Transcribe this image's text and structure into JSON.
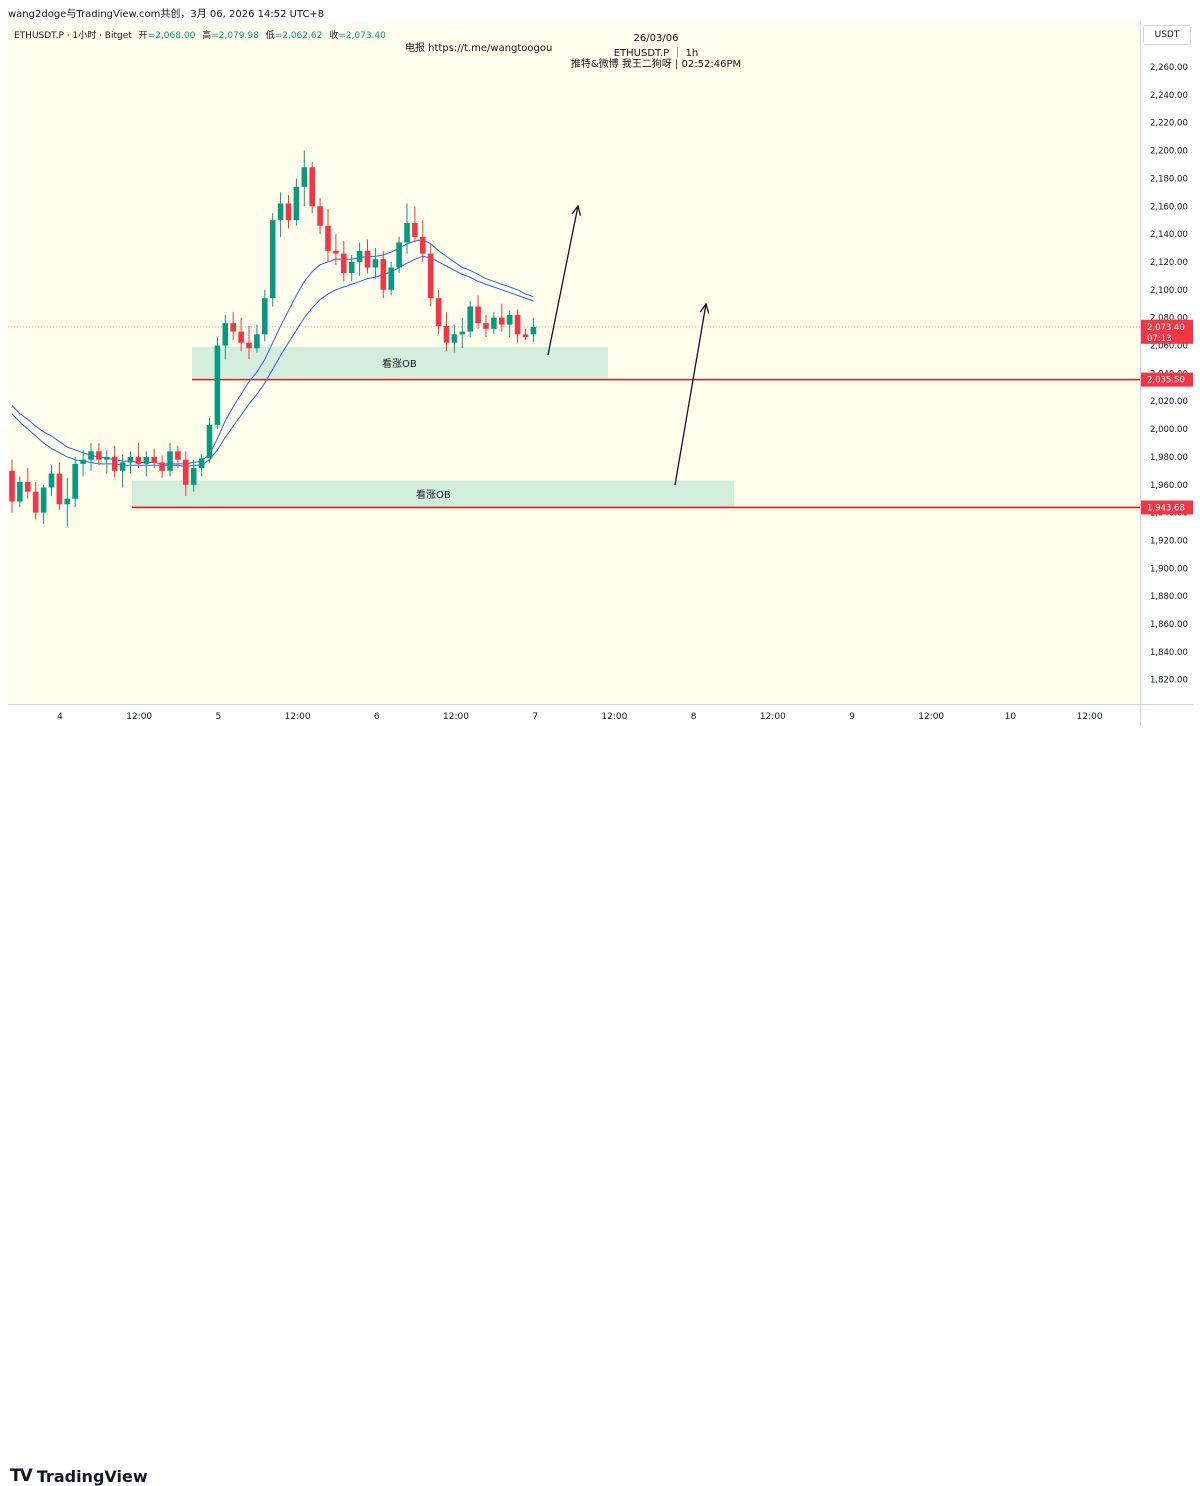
{
  "header": {
    "title": "wang2doge与TradingView.com共创，3月 06, 2026 14:52 UTC+8"
  },
  "legend": {
    "symbol": "ETHUSDT.P · 1小时 · Bitget",
    "open_label": "开",
    "open_value": "=2,068.00",
    "high_label": "高",
    "high_value": "=2,079.98",
    "low_label": "低",
    "low_value": "=2,062.62",
    "close_label": "收",
    "close_value": "=2,073.40"
  },
  "watermark": {
    "telegram": "电报 https://t.me/wangtoogou",
    "date": "26/03/06",
    "symbol": "ETHUSDT.P ｜ 1h",
    "social": "推特&微博 我王二狗呀 | 02:52:46PM"
  },
  "price_axis": {
    "unit": "USDT",
    "ticks": [
      "2,260.00",
      "2,240.00",
      "2,220.00",
      "2,200.00",
      "2,180.00",
      "2,160.00",
      "2,140.00",
      "2,120.00",
      "2,100.00",
      "2,080.00",
      "2,060.00",
      "2,040.00",
      "2,020.00",
      "2,000.00",
      "1,980.00",
      "1,960.00",
      "1,940.00",
      "1,920.00",
      "1,900.00",
      "1,880.00",
      "1,860.00",
      "1,840.00",
      "1,820.00"
    ]
  },
  "time_axis": {
    "ticks": [
      "4",
      "12:00",
      "5",
      "12:00",
      "6",
      "12:00",
      "7",
      "12:00",
      "8",
      "12:00",
      "9",
      "12:00",
      "10",
      "12:00"
    ]
  },
  "price_labels": {
    "current": "2,073.40",
    "countdown": "07:13",
    "level_upper": "2,035.50",
    "level_lower": "1,943.68"
  },
  "zones": {
    "upper_label": "看涨OB",
    "lower_label": "看涨OB"
  },
  "brand": {
    "name": "TradingView"
  },
  "colors": {
    "up": "#089981",
    "down": "#f23645",
    "ma": "#2962ff",
    "zone": "#d4eede",
    "level": "#e01b1b",
    "background": "#fffdeb"
  },
  "chart_data": {
    "type": "candlestick",
    "symbol": "ETHUSDT.P",
    "interval": "1h",
    "ylim": [
      1810,
      2270
    ],
    "x_ticks": [
      "4",
      "12:00",
      "5",
      "12:00",
      "6",
      "12:00",
      "7",
      "12:00",
      "8",
      "12:00",
      "9",
      "12:00",
      "10",
      "12:00"
    ],
    "ohlc": [
      [
        1970,
        1978,
        1940,
        1948
      ],
      [
        1948,
        1966,
        1944,
        1962
      ],
      [
        1962,
        1972,
        1950,
        1955
      ],
      [
        1955,
        1962,
        1935,
        1940
      ],
      [
        1940,
        1960,
        1932,
        1958
      ],
      [
        1958,
        1974,
        1952,
        1968
      ],
      [
        1968,
        1976,
        1942,
        1946
      ],
      [
        1946,
        1965,
        1930,
        1950
      ],
      [
        1950,
        1980,
        1944,
        1975
      ],
      [
        1975,
        1985,
        1966,
        1978
      ],
      [
        1978,
        1990,
        1970,
        1984
      ],
      [
        1984,
        1990,
        1974,
        1978
      ],
      [
        1978,
        1985,
        1968,
        1980
      ],
      [
        1980,
        1988,
        1965,
        1970
      ],
      [
        1970,
        1982,
        1958,
        1976
      ],
      [
        1976,
        1984,
        1968,
        1980
      ],
      [
        1980,
        1990,
        1972,
        1975
      ],
      [
        1975,
        1984,
        1966,
        1980
      ],
      [
        1980,
        1986,
        1972,
        1976
      ],
      [
        1976,
        1981,
        1965,
        1970
      ],
      [
        1970,
        1990,
        1966,
        1984
      ],
      [
        1984,
        1988,
        1972,
        1978
      ],
      [
        1978,
        1984,
        1952,
        1960
      ],
      [
        1960,
        1978,
        1955,
        1972
      ],
      [
        1972,
        1982,
        1966,
        1979
      ],
      [
        1979,
        2008,
        1976,
        2003
      ],
      [
        2003,
        2066,
        2000,
        2060
      ],
      [
        2060,
        2082,
        2050,
        2076
      ],
      [
        2076,
        2084,
        2064,
        2070
      ],
      [
        2070,
        2080,
        2056,
        2062
      ],
      [
        2062,
        2074,
        2050,
        2058
      ],
      [
        2058,
        2075,
        2055,
        2068
      ],
      [
        2068,
        2100,
        2063,
        2094
      ],
      [
        2094,
        2155,
        2088,
        2150
      ],
      [
        2150,
        2170,
        2138,
        2162
      ],
      [
        2162,
        2168,
        2144,
        2150
      ],
      [
        2150,
        2180,
        2146,
        2174
      ],
      [
        2174,
        2200,
        2160,
        2188
      ],
      [
        2188,
        2192,
        2155,
        2160
      ],
      [
        2160,
        2166,
        2140,
        2146
      ],
      [
        2146,
        2158,
        2120,
        2128
      ],
      [
        2128,
        2140,
        2118,
        2126
      ],
      [
        2126,
        2135,
        2106,
        2112
      ],
      [
        2112,
        2125,
        2106,
        2120
      ],
      [
        2120,
        2134,
        2110,
        2128
      ],
      [
        2128,
        2136,
        2112,
        2116
      ],
      [
        2116,
        2130,
        2108,
        2122
      ],
      [
        2122,
        2128,
        2094,
        2100
      ],
      [
        2100,
        2120,
        2096,
        2116
      ],
      [
        2116,
        2138,
        2112,
        2134
      ],
      [
        2134,
        2162,
        2126,
        2148
      ],
      [
        2148,
        2160,
        2134,
        2138
      ],
      [
        2138,
        2150,
        2120,
        2126
      ],
      [
        2126,
        2133,
        2088,
        2094
      ],
      [
        2094,
        2100,
        2068,
        2074
      ],
      [
        2074,
        2084,
        2056,
        2062
      ],
      [
        2062,
        2075,
        2055,
        2068
      ],
      [
        2068,
        2080,
        2058,
        2070
      ],
      [
        2070,
        2092,
        2066,
        2088
      ],
      [
        2088,
        2096,
        2072,
        2076
      ],
      [
        2076,
        2082,
        2066,
        2072
      ],
      [
        2072,
        2084,
        2068,
        2080
      ],
      [
        2080,
        2090,
        2070,
        2075
      ],
      [
        2075,
        2085,
        2066,
        2082
      ],
      [
        2082,
        2086,
        2062,
        2068
      ],
      [
        2068,
        2072,
        2064,
        2066
      ],
      [
        2068,
        2079.98,
        2062.62,
        2073.4
      ]
    ],
    "series": [
      {
        "name": "",
        "values": [
          2017,
          2011,
          2007,
          2002,
          1998,
          1995,
          1991,
          1987,
          1985,
          1983,
          1981,
          1980,
          1979,
          1978,
          1977,
          1977,
          1976,
          1976,
          1976,
          1975,
          1975,
          1975,
          1975,
          1976,
          1977,
          1982,
          1993,
          2006,
          2016,
          2025,
          2034,
          2041,
          2050,
          2062,
          2074,
          2085,
          2096,
          2106,
          2113,
          2118,
          2120,
          2122,
          2122,
          2122,
          2123,
          2124,
          2124,
          2125,
          2127,
          2130,
          2133,
          2135,
          2136,
          2133,
          2128,
          2124,
          2120,
          2116,
          2114,
          2111,
          2108,
          2106,
          2104,
          2102,
          2100,
          2097,
          2095
        ]
      },
      {
        "name": "",
        "values": [
          2011,
          2005,
          2000,
          1995,
          1990,
          1986,
          1983,
          1980,
          1978,
          1977,
          1976,
          1975,
          1975,
          1975,
          1974,
          1974,
          1974,
          1974,
          1974,
          1974,
          1974,
          1974,
          1973,
          1974,
          1974,
          1978,
          1985,
          1994,
          2002,
          2010,
          2018,
          2025,
          2033,
          2043,
          2053,
          2062,
          2071,
          2080,
          2087,
          2093,
          2097,
          2100,
          2102,
          2104,
          2106,
          2108,
          2109,
          2111,
          2113,
          2116,
          2119,
          2122,
          2124,
          2123,
          2120,
          2117,
          2114,
          2111,
          2109,
          2106,
          2104,
          2102,
          2100,
          2098,
          2096,
          2094,
          2092
        ]
      }
    ],
    "zones": [
      {
        "label": "看涨OB",
        "from": 2036,
        "to": 2059,
        "x_start_bar": 30,
        "x_end": "7 00:00"
      },
      {
        "label": "看涨OB",
        "from": 1944,
        "to": 1963,
        "x_start_bar": 20,
        "x_end": "8 06:00"
      }
    ],
    "levels": [
      2035.5,
      1943.68
    ],
    "last_price": 2073.4
  }
}
